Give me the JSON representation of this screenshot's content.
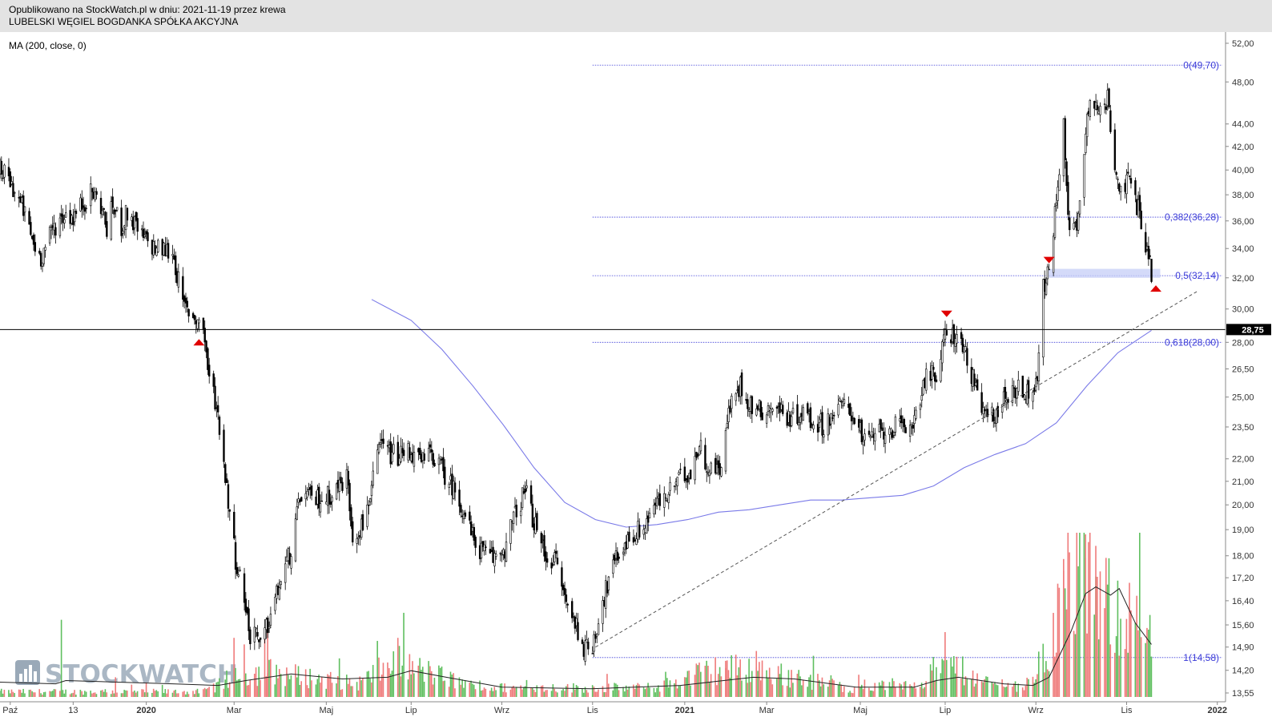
{
  "header": {
    "line1": "Opublikowano na StockWatch.pl w dniu: 2021-11-19 przez krewa",
    "line2": "LUBELSKI WĘGIEL BOGDANKA SPÓŁKA AKCYJNA"
  },
  "indicator_label": "MA (200, close, 0)",
  "watermark": "STOCKWATCH",
  "colors": {
    "fib": "#3b3bd8",
    "ma": "#7a7ae8",
    "up_volume": "#5fbf5f",
    "down_volume": "#ef7a7a",
    "marker": "#e00000",
    "candle": "#000000"
  },
  "chart_data": {
    "type": "candlestick",
    "title": "LUBELSKI WĘGIEL BOGDANKA SPÓŁKA AKCYJNA",
    "x_range": [
      "2019-09-24",
      "2022-01-10"
    ],
    "y_scale": "log",
    "y_range": [
      13.55,
      52.0
    ],
    "y_ticks": [
      "52,00",
      "48,00",
      "44,00",
      "42,00",
      "40,00",
      "38,00",
      "36,00",
      "34,00",
      "32,00",
      "30,00",
      "28,00",
      "26,50",
      "25,00",
      "23,50",
      "22,00",
      "21,00",
      "20,00",
      "19,00",
      "18,00",
      "17,20",
      "16,40",
      "15,60",
      "14,90",
      "14,20",
      "13,55"
    ],
    "x_ticks": [
      {
        "date": "2019-10-01",
        "label": "Paź"
      },
      {
        "date": "2019-11-13",
        "label": "13"
      },
      {
        "date": "2020-01-02",
        "label": "2020"
      },
      {
        "date": "2020-03-02",
        "label": "Mar"
      },
      {
        "date": "2020-05-04",
        "label": "Maj"
      },
      {
        "date": "2020-07-01",
        "label": "Lip"
      },
      {
        "date": "2020-09-01",
        "label": "Wrz"
      },
      {
        "date": "2020-11-02",
        "label": "Lis"
      },
      {
        "date": "2021-01-04",
        "label": "2021"
      },
      {
        "date": "2021-03-01",
        "label": "Mar"
      },
      {
        "date": "2021-05-04",
        "label": "Maj"
      },
      {
        "date": "2021-07-01",
        "label": "Lip"
      },
      {
        "date": "2021-09-01",
        "label": "Wrz"
      },
      {
        "date": "2021-11-02",
        "label": "Lis"
      },
      {
        "date": "2022-01-03",
        "label": "2022"
      }
    ],
    "price_path": [
      [
        "2019-09-24",
        40.0
      ],
      [
        "2019-10-01",
        39.0
      ],
      [
        "2019-10-10",
        36.8
      ],
      [
        "2019-10-17",
        34.3
      ],
      [
        "2019-10-22",
        33.4
      ],
      [
        "2019-10-31",
        35.6
      ],
      [
        "2019-11-08",
        36.6
      ],
      [
        "2019-11-13",
        36.3
      ],
      [
        "2019-11-20",
        37.4
      ],
      [
        "2019-11-26",
        38.2
      ],
      [
        "2019-12-02",
        37.2
      ],
      [
        "2019-12-06",
        35.4
      ],
      [
        "2019-12-10",
        37.1
      ],
      [
        "2019-12-16",
        35.6
      ],
      [
        "2019-12-20",
        36.6
      ],
      [
        "2019-12-30",
        34.8
      ],
      [
        "2020-01-08",
        34.0
      ],
      [
        "2020-01-20",
        33.8
      ],
      [
        "2020-01-27",
        30.2
      ],
      [
        "2020-02-03",
        29.6
      ],
      [
        "2020-02-10",
        28.9
      ],
      [
        "2020-02-14",
        25.8
      ],
      [
        "2020-02-17",
        25.3
      ],
      [
        "2020-02-21",
        23.6
      ],
      [
        "2020-02-26",
        20.7
      ],
      [
        "2020-03-03",
        17.9
      ],
      [
        "2020-03-10",
        16.3
      ],
      [
        "2020-03-13",
        15.0
      ],
      [
        "2020-03-16",
        15.8
      ],
      [
        "2020-03-19",
        14.8
      ],
      [
        "2020-03-25",
        15.6
      ],
      [
        "2020-04-03",
        17.1
      ],
      [
        "2020-04-10",
        18.2
      ],
      [
        "2020-04-17",
        20.5
      ],
      [
        "2020-04-24",
        20.2
      ],
      [
        "2020-05-04",
        20.3
      ],
      [
        "2020-05-11",
        20.7
      ],
      [
        "2020-05-18",
        21.2
      ],
      [
        "2020-05-22",
        18.8
      ],
      [
        "2020-05-29",
        19.2
      ],
      [
        "2020-06-05",
        21.0
      ],
      [
        "2020-06-10",
        22.6
      ],
      [
        "2020-06-15",
        22.3
      ],
      [
        "2020-06-22",
        22.1
      ],
      [
        "2020-06-30",
        22.4
      ],
      [
        "2020-07-08",
        21.8
      ],
      [
        "2020-07-15",
        22.3
      ],
      [
        "2020-07-22",
        21.5
      ],
      [
        "2020-07-29",
        20.8
      ],
      [
        "2020-08-05",
        19.9
      ],
      [
        "2020-08-12",
        18.7
      ],
      [
        "2020-08-19",
        18.1
      ],
      [
        "2020-08-26",
        17.9
      ],
      [
        "2020-09-03",
        18.3
      ],
      [
        "2020-09-10",
        19.6
      ],
      [
        "2020-09-17",
        20.6
      ],
      [
        "2020-09-24",
        19.1
      ],
      [
        "2020-10-01",
        18.0
      ],
      [
        "2020-10-08",
        17.8
      ],
      [
        "2020-10-15",
        16.3
      ],
      [
        "2020-10-22",
        15.6
      ],
      [
        "2020-10-28",
        14.8
      ],
      [
        "2020-11-02",
        15.0
      ],
      [
        "2020-11-09",
        16.4
      ],
      [
        "2020-11-16",
        17.6
      ],
      [
        "2020-11-23",
        18.4
      ],
      [
        "2020-11-30",
        18.8
      ],
      [
        "2020-12-07",
        19.1
      ],
      [
        "2020-12-14",
        20.0
      ],
      [
        "2020-12-21",
        20.2
      ],
      [
        "2020-12-30",
        21.0
      ],
      [
        "2021-01-07",
        21.4
      ],
      [
        "2021-01-14",
        22.6
      ],
      [
        "2021-01-21",
        21.5
      ],
      [
        "2021-01-28",
        21.6
      ],
      [
        "2021-02-04",
        24.5
      ],
      [
        "2021-02-11",
        25.6
      ],
      [
        "2021-02-18",
        24.6
      ],
      [
        "2021-02-25",
        24.3
      ],
      [
        "2021-03-04",
        24.5
      ],
      [
        "2021-03-11",
        24.3
      ],
      [
        "2021-03-18",
        23.9
      ],
      [
        "2021-03-25",
        24.3
      ],
      [
        "2021-04-01",
        23.8
      ],
      [
        "2021-04-09",
        23.6
      ],
      [
        "2021-04-16",
        24.2
      ],
      [
        "2021-04-23",
        24.6
      ],
      [
        "2021-04-30",
        24.1
      ],
      [
        "2021-05-07",
        22.7
      ],
      [
        "2021-05-14",
        23.1
      ],
      [
        "2021-05-21",
        23.3
      ],
      [
        "2021-05-28",
        23.6
      ],
      [
        "2021-06-04",
        23.1
      ],
      [
        "2021-06-11",
        24.2
      ],
      [
        "2021-06-18",
        26.3
      ],
      [
        "2021-06-25",
        26.0
      ],
      [
        "2021-07-02",
        28.7
      ],
      [
        "2021-07-09",
        28.3
      ],
      [
        "2021-07-16",
        27.2
      ],
      [
        "2021-07-23",
        24.9
      ],
      [
        "2021-07-30",
        23.8
      ],
      [
        "2021-08-06",
        24.4
      ],
      [
        "2021-08-13",
        25.1
      ],
      [
        "2021-08-20",
        25.6
      ],
      [
        "2021-08-27",
        25.1
      ],
      [
        "2021-09-02",
        26.1
      ],
      [
        "2021-09-06",
        31.3
      ],
      [
        "2021-09-10",
        32.3
      ],
      [
        "2021-09-15",
        37.6
      ],
      [
        "2021-09-20",
        43.6
      ],
      [
        "2021-09-24",
        35.1
      ],
      [
        "2021-09-29",
        35.5
      ],
      [
        "2021-10-04",
        41.8
      ],
      [
        "2021-10-08",
        47.0
      ],
      [
        "2021-10-12",
        46.1
      ],
      [
        "2021-10-15",
        44.7
      ],
      [
        "2021-10-20",
        46.4
      ],
      [
        "2021-10-25",
        40.8
      ],
      [
        "2021-10-29",
        38.4
      ],
      [
        "2021-11-04",
        39.1
      ],
      [
        "2021-11-08",
        37.6
      ],
      [
        "2021-11-12",
        36.2
      ],
      [
        "2021-11-16",
        33.9
      ],
      [
        "2021-11-19",
        32.3
      ]
    ],
    "ma200_path": [
      [
        "2020-06-04",
        30.6
      ],
      [
        "2020-07-01",
        29.3
      ],
      [
        "2020-07-22",
        27.6
      ],
      [
        "2020-08-12",
        25.6
      ],
      [
        "2020-09-02",
        23.6
      ],
      [
        "2020-09-23",
        21.6
      ],
      [
        "2020-10-14",
        20.1
      ],
      [
        "2020-11-04",
        19.4
      ],
      [
        "2020-11-25",
        19.1
      ],
      [
        "2020-12-16",
        19.2
      ],
      [
        "2021-01-06",
        19.4
      ],
      [
        "2021-01-27",
        19.7
      ],
      [
        "2021-02-17",
        19.8
      ],
      [
        "2021-03-10",
        20.0
      ],
      [
        "2021-03-31",
        20.2
      ],
      [
        "2021-04-21",
        20.2
      ],
      [
        "2021-05-12",
        20.3
      ],
      [
        "2021-06-02",
        20.4
      ],
      [
        "2021-06-23",
        20.8
      ],
      [
        "2021-07-14",
        21.6
      ],
      [
        "2021-08-04",
        22.2
      ],
      [
        "2021-08-25",
        22.7
      ],
      [
        "2021-09-15",
        23.7
      ],
      [
        "2021-10-06",
        25.6
      ],
      [
        "2021-10-27",
        27.4
      ],
      [
        "2021-11-19",
        28.7
      ]
    ],
    "fib_levels": [
      {
        "value": 49.7,
        "label": "0(49,70)"
      },
      {
        "value": 36.28,
        "label": "0,382(36,28)"
      },
      {
        "value": 32.14,
        "label": "0,5(32,14)"
      },
      {
        "value": 28.0,
        "label": "0,618(28,00)"
      },
      {
        "value": 14.58,
        "label": "1(14,58)"
      }
    ],
    "fib_start_date": "2020-11-02",
    "horizontal_line": {
      "value": 28.75,
      "label": "28,75"
    },
    "trendline": [
      [
        "2020-11-04",
        14.9
      ],
      [
        "2021-12-20",
        31.1
      ]
    ],
    "support_zone": {
      "from_date": "2021-09-09",
      "to_date": "2021-11-25",
      "low": 32.0,
      "high": 32.6
    },
    "markers": [
      {
        "date": "2020-02-07",
        "value": 28.0,
        "dir": "up"
      },
      {
        "date": "2021-07-02",
        "value": 29.7,
        "dir": "down"
      },
      {
        "date": "2021-09-10",
        "value": 33.2,
        "dir": "down"
      },
      {
        "date": "2021-11-22",
        "value": 31.3,
        "dir": "up"
      }
    ],
    "volume_profile": [
      [
        "2019-09-24",
        0.04
      ],
      [
        "2020-02-10",
        0.04
      ],
      [
        "2020-03-02",
        0.14
      ],
      [
        "2020-03-23",
        0.2
      ],
      [
        "2020-04-15",
        0.16
      ],
      [
        "2020-05-25",
        0.1
      ],
      [
        "2020-06-20",
        0.26
      ],
      [
        "2020-07-15",
        0.18
      ],
      [
        "2020-08-15",
        0.07
      ],
      [
        "2020-10-15",
        0.07
      ],
      [
        "2020-12-15",
        0.07
      ],
      [
        "2021-01-20",
        0.2
      ],
      [
        "2021-02-15",
        0.22
      ],
      [
        "2021-03-15",
        0.16
      ],
      [
        "2021-05-01",
        0.06
      ],
      [
        "2021-06-15",
        0.12
      ],
      [
        "2021-07-05",
        0.25
      ],
      [
        "2021-07-25",
        0.12
      ],
      [
        "2021-08-25",
        0.08
      ],
      [
        "2021-09-08",
        0.32
      ],
      [
        "2021-09-20",
        0.75
      ],
      [
        "2021-10-05",
        0.85
      ],
      [
        "2021-10-20",
        0.7
      ],
      [
        "2021-11-10",
        0.55
      ],
      [
        "2021-11-19",
        0.4
      ]
    ],
    "volume_spikes": [
      {
        "date": "2019-11-05",
        "h": 0.47
      },
      {
        "date": "2019-12-12",
        "h": 0.12
      },
      {
        "date": "2020-03-02",
        "h": 0.36
      },
      {
        "date": "2020-03-09",
        "h": 0.32
      },
      {
        "date": "2020-03-25",
        "h": 0.44
      },
      {
        "date": "2020-06-22",
        "h": 0.36
      },
      {
        "date": "2021-02-01",
        "h": 0.22
      },
      {
        "date": "2021-02-22",
        "h": 0.28
      },
      {
        "date": "2021-09-20",
        "h": 0.84
      },
      {
        "date": "2021-10-05",
        "h": 0.99
      },
      {
        "date": "2021-10-12",
        "h": 0.92
      }
    ],
    "volume_ma_path": [
      [
        "2019-09-24",
        0.09
      ],
      [
        "2019-11-01",
        0.08
      ],
      [
        "2019-11-08",
        0.1
      ],
      [
        "2020-01-20",
        0.08
      ],
      [
        "2020-02-20",
        0.07
      ],
      [
        "2020-03-10",
        0.1
      ],
      [
        "2020-04-10",
        0.14
      ],
      [
        "2020-05-15",
        0.11
      ],
      [
        "2020-06-15",
        0.12
      ],
      [
        "2020-07-01",
        0.16
      ],
      [
        "2020-07-25",
        0.12
      ],
      [
        "2020-09-01",
        0.06
      ],
      [
        "2020-11-01",
        0.05
      ],
      [
        "2021-01-01",
        0.07
      ],
      [
        "2021-02-20",
        0.12
      ],
      [
        "2021-03-20",
        0.11
      ],
      [
        "2021-05-01",
        0.06
      ],
      [
        "2021-06-10",
        0.06
      ],
      [
        "2021-06-25",
        0.1
      ],
      [
        "2021-07-10",
        0.12
      ],
      [
        "2021-08-10",
        0.08
      ],
      [
        "2021-08-30",
        0.07
      ],
      [
        "2021-09-10",
        0.12
      ],
      [
        "2021-09-25",
        0.4
      ],
      [
        "2021-10-05",
        0.63
      ],
      [
        "2021-10-12",
        0.67
      ],
      [
        "2021-10-22",
        0.62
      ],
      [
        "2021-10-28",
        0.66
      ],
      [
        "2021-11-08",
        0.45
      ],
      [
        "2021-11-19",
        0.32
      ]
    ]
  }
}
